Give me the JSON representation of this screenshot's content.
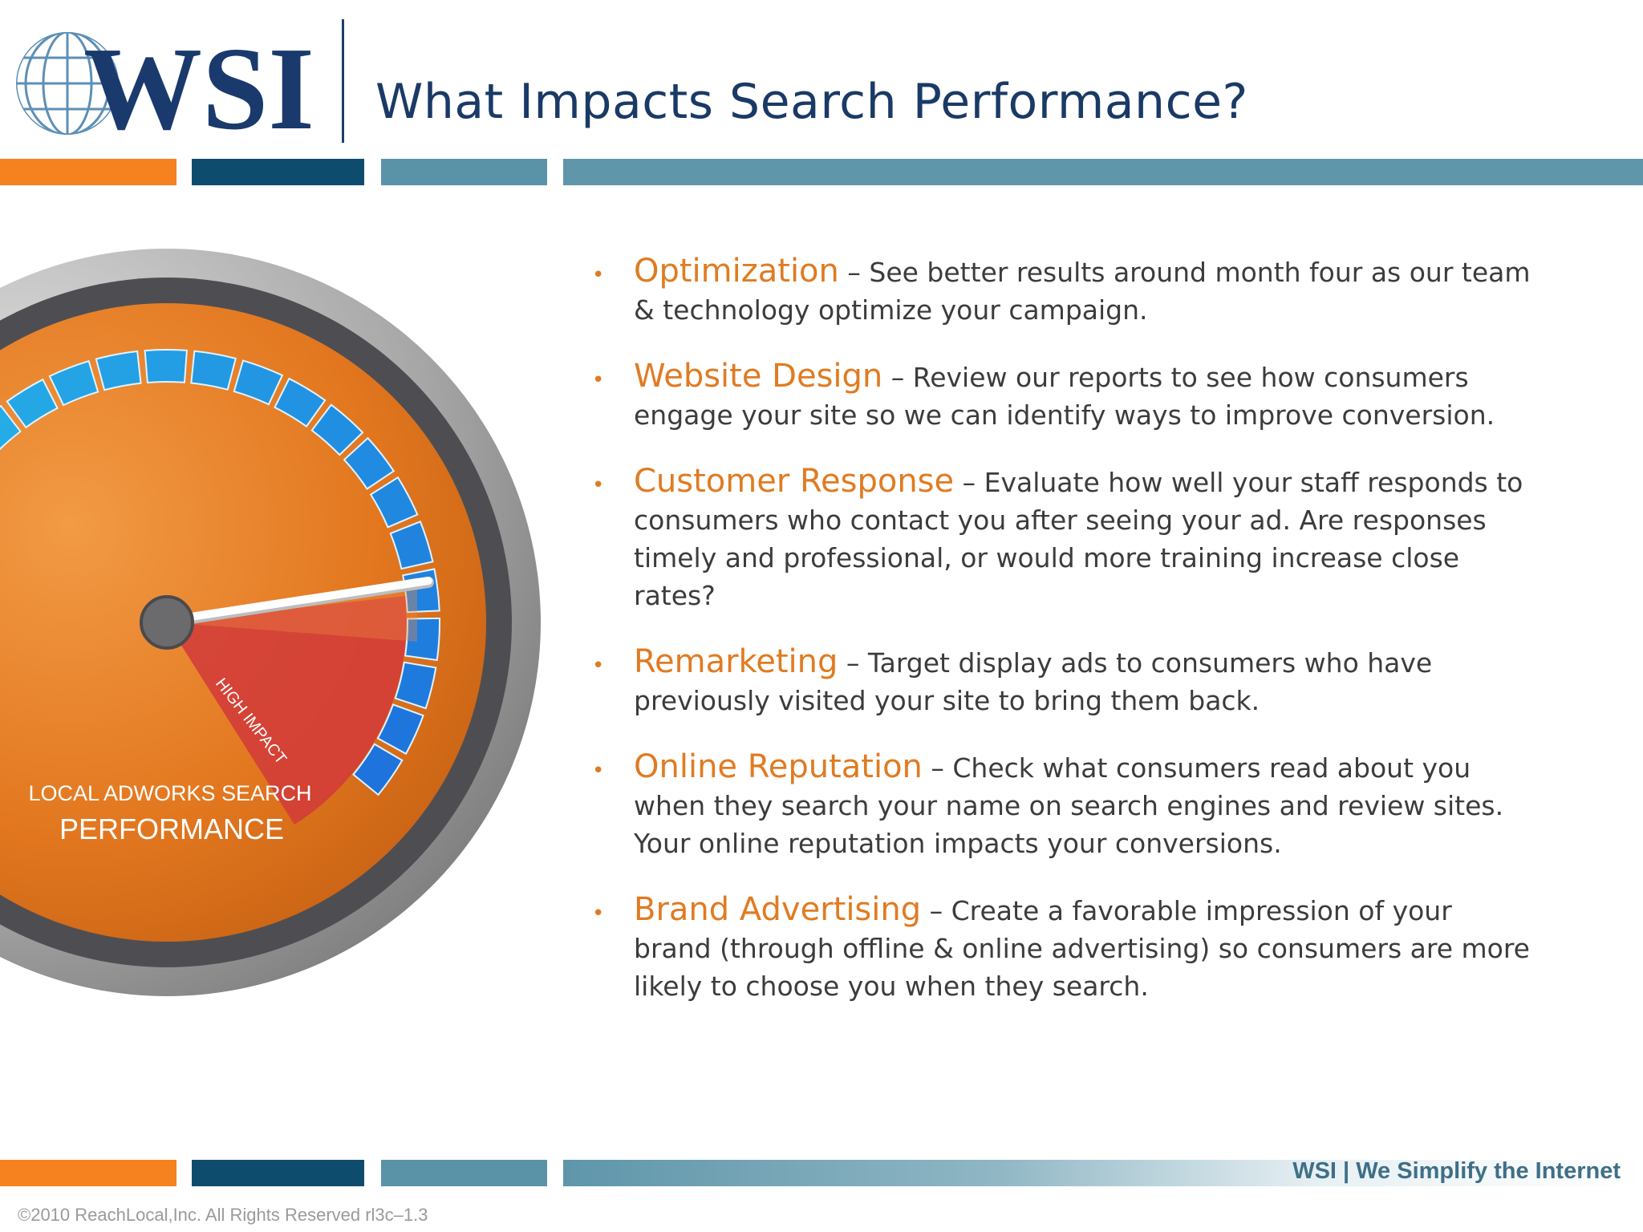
{
  "logo": {
    "text": "WSI"
  },
  "title": "What Impacts Search Performance?",
  "gauge": {
    "label_line1": "LOCAL ADWORKS SEARCH",
    "label_line2": "PERFORMANCE",
    "zone_label": "HIGH IMPACT"
  },
  "items": [
    {
      "title": "Optimization",
      "desc": " – See better results around month four as our team & technology optimize your campaign."
    },
    {
      "title": "Website Design",
      "desc": " – Review our reports to see how consumers engage your site so we can identify ways to improve conversion."
    },
    {
      "title": "Customer Response",
      "desc": " – Evaluate how well your staff responds to consumers who contact you after seeing your ad.  Are responses timely and professional, or would more training increase close rates?"
    },
    {
      "title": "Remarketing",
      "desc": " – Target display ads to consumers who have previously visited your site to bring them back."
    },
    {
      "title": "Online Reputation",
      "desc": " – Check what consumers read about you when they search your name on search engines and review sites.  Your online reputation impacts your conversions."
    },
    {
      "title": "Brand Advertising",
      "desc": " – Create a favorable impression of your brand (through offline & online advertising) so consumers are more likely to choose you when they search."
    }
  ],
  "footer": {
    "tagline": "WSI | We Simplify the Internet",
    "copyright": "©2010 ReachLocal,Inc.  All Rights Reserved  rl3c–1.3"
  },
  "colors": {
    "orange": "#f5821f",
    "navy": "#0e4c6e",
    "teal": "#5a93a8",
    "title_blue": "#1a3a66",
    "accent_text": "#e07b22"
  }
}
